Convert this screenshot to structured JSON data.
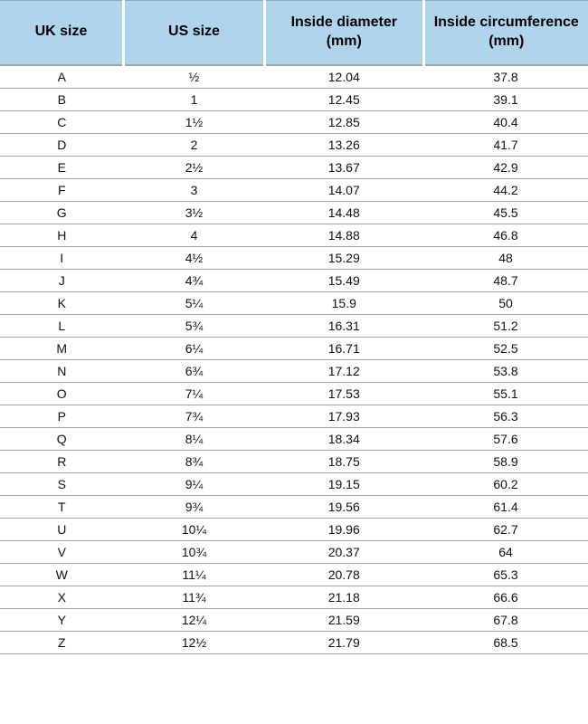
{
  "table": {
    "header_bg": "#b1d4ed",
    "header_border_color": "#8aa6b8",
    "header_fontsize": "16px",
    "header_color": "#000000",
    "row_border_color": "#a3a3a3",
    "cell_fontsize": "14px",
    "cell_color": "#111111",
    "columns": [
      "UK size",
      "US size",
      "Inside diameter (mm)",
      "Inside circumference (mm)"
    ],
    "column_widths": [
      "21%",
      "24%",
      "27%",
      "28%"
    ],
    "rows": [
      [
        "A",
        "½",
        "12.04",
        "37.8"
      ],
      [
        "B",
        "1",
        "12.45",
        "39.1"
      ],
      [
        "C",
        "1½",
        "12.85",
        "40.4"
      ],
      [
        "D",
        "2",
        "13.26",
        "41.7"
      ],
      [
        "E",
        "2½",
        "13.67",
        "42.9"
      ],
      [
        "F",
        "3",
        "14.07",
        "44.2"
      ],
      [
        "G",
        "3½",
        "14.48",
        "45.5"
      ],
      [
        "H",
        "4",
        "14.88",
        "46.8"
      ],
      [
        "I",
        "4½",
        "15.29",
        "48"
      ],
      [
        "J",
        "4¾",
        "15.49",
        "48.7"
      ],
      [
        "K",
        "5¼",
        "15.9",
        "50"
      ],
      [
        "L",
        "5¾",
        "16.31",
        "51.2"
      ],
      [
        "M",
        "6¼",
        "16.71",
        "52.5"
      ],
      [
        "N",
        "6¾",
        "17.12",
        "53.8"
      ],
      [
        "O",
        "7¼",
        "17.53",
        "55.1"
      ],
      [
        "P",
        "7¾",
        "17.93",
        "56.3"
      ],
      [
        "Q",
        "8¼",
        "18.34",
        "57.6"
      ],
      [
        "R",
        "8¾",
        "18.75",
        "58.9"
      ],
      [
        "S",
        "9¼",
        "19.15",
        "60.2"
      ],
      [
        "T",
        "9¾",
        "19.56",
        "61.4"
      ],
      [
        "U",
        "10¼",
        "19.96",
        "62.7"
      ],
      [
        "V",
        "10¾",
        "20.37",
        "64"
      ],
      [
        "W",
        "11¼",
        "20.78",
        "65.3"
      ],
      [
        "X",
        "11¾",
        "21.18",
        "66.6"
      ],
      [
        "Y",
        "12¼",
        "21.59",
        "67.8"
      ],
      [
        "Z",
        "12½",
        "21.79",
        "68.5"
      ]
    ]
  }
}
